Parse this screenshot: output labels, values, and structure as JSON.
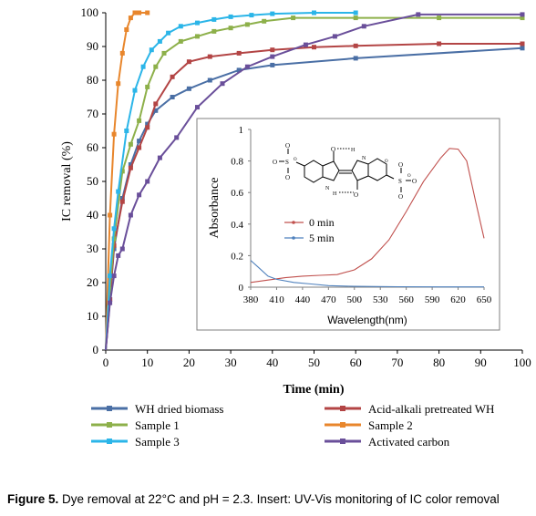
{
  "caption": {
    "label": "Figure 5.",
    "text": " Dye removal at 22°C and pH = 2.3. Insert: UV-Vis monitoring of  IC color removal"
  },
  "chart_data": [
    {
      "type": "line",
      "title": "",
      "xlabel": "Time  (min)",
      "ylabel": "IC removal (%)",
      "xlim": [
        0,
        100
      ],
      "ylim": [
        0,
        100
      ],
      "xticks": [
        0,
        10,
        20,
        30,
        40,
        50,
        60,
        70,
        80,
        90,
        100
      ],
      "yticks": [
        0,
        10,
        20,
        30,
        40,
        50,
        60,
        70,
        80,
        90,
        100
      ],
      "grid": false,
      "legend_position": "bottom",
      "series": [
        {
          "name": "WH dried biomass",
          "color": "#4a6fa5",
          "x": [
            0,
            1,
            2,
            4,
            6,
            8,
            10,
            12,
            16,
            20,
            25,
            32,
            40,
            60,
            100
          ],
          "y": [
            0,
            15,
            30,
            45,
            55,
            62,
            67,
            71,
            75,
            77.5,
            80,
            83,
            84.5,
            86.5,
            89.5
          ]
        },
        {
          "name": "Acid-alkali pretreated WH",
          "color": "#b34545",
          "x": [
            0,
            1,
            2,
            4,
            6,
            8,
            10,
            12,
            16,
            20,
            25,
            32,
            40,
            50,
            60,
            80,
            100
          ],
          "y": [
            0,
            15,
            31,
            44,
            54,
            60,
            66,
            73,
            81,
            85.5,
            87,
            88,
            89,
            89.8,
            90.2,
            90.8,
            90.8
          ]
        },
        {
          "name": "Sample 1",
          "color": "#8db04a",
          "x": [
            0,
            1,
            2,
            4,
            6,
            8,
            10,
            12,
            14,
            18,
            22,
            26,
            30,
            34,
            38,
            45,
            60,
            80,
            100
          ],
          "y": [
            0,
            18,
            33,
            53,
            61,
            68,
            78,
            84,
            88,
            91.5,
            93,
            94.5,
            95.5,
            96.5,
            97.5,
            98.5,
            98.5,
            98.5,
            98.5
          ]
        },
        {
          "name": "Sample 2",
          "color": "#e8862c",
          "x": [
            0,
            1,
            2,
            3,
            4,
            5,
            6,
            7,
            8,
            10
          ],
          "y": [
            0,
            40,
            64,
            79,
            88,
            95,
            98.5,
            100,
            100,
            100
          ]
        },
        {
          "name": "Sample 3",
          "color": "#2bb5e8",
          "x": [
            0,
            1,
            2,
            3,
            5,
            7,
            9,
            11,
            13,
            15,
            18,
            22,
            26,
            30,
            35,
            40,
            50,
            60
          ],
          "y": [
            0,
            22,
            36,
            47,
            65,
            77,
            84,
            89,
            91.5,
            94,
            96,
            97,
            98,
            98.8,
            99.3,
            99.7,
            100,
            100
          ]
        },
        {
          "name": "Activated carbon",
          "color": "#6a4f9a",
          "x": [
            0,
            1,
            2,
            3,
            4,
            6,
            8,
            10,
            13,
            17,
            22,
            28,
            34,
            40,
            48,
            55,
            62,
            75,
            100
          ],
          "y": [
            0,
            14,
            22,
            28,
            30,
            40,
            46,
            50,
            57,
            63,
            72,
            79,
            84,
            87,
            90.5,
            93,
            96,
            99.5,
            99.5
          ]
        }
      ]
    },
    {
      "type": "line",
      "title": "",
      "xlabel": "Wavelength(nm)",
      "ylabel": "Absorbance",
      "xlim": [
        380,
        650
      ],
      "ylim": [
        0,
        1
      ],
      "xticks": [
        380,
        410,
        440,
        470,
        500,
        530,
        560,
        590,
        620,
        650
      ],
      "yticks": [
        0,
        0.2,
        0.4,
        0.6,
        0.8,
        1
      ],
      "ytick_labels": [
        "0",
        "0.2",
        "0.4",
        "0.6",
        "0.8",
        "1"
      ],
      "grid": false,
      "legend_position": "middle-left",
      "series": [
        {
          "name": "0 min",
          "color": "#c0504d",
          "x": [
            380,
            400,
            420,
            440,
            460,
            480,
            500,
            520,
            540,
            560,
            580,
            600,
            610,
            620,
            630,
            640,
            650
          ],
          "y": [
            0.03,
            0.045,
            0.06,
            0.07,
            0.075,
            0.08,
            0.11,
            0.18,
            0.3,
            0.48,
            0.67,
            0.82,
            0.88,
            0.875,
            0.8,
            0.55,
            0.31
          ]
        },
        {
          "name": "5 min",
          "color": "#4f81bd",
          "x": [
            380,
            390,
            400,
            410,
            430,
            450,
            470,
            500,
            550,
            600,
            650
          ],
          "y": [
            0.17,
            0.12,
            0.07,
            0.05,
            0.03,
            0.02,
            0.01,
            0.005,
            0.003,
            0.002,
            0.002
          ]
        }
      ]
    }
  ],
  "structure_labels": [
    "S",
    "O",
    "O",
    "O",
    "O",
    "O",
    "S",
    "O",
    "O",
    "O",
    "O",
    "N",
    "H",
    "N",
    "H",
    "O",
    "O"
  ]
}
